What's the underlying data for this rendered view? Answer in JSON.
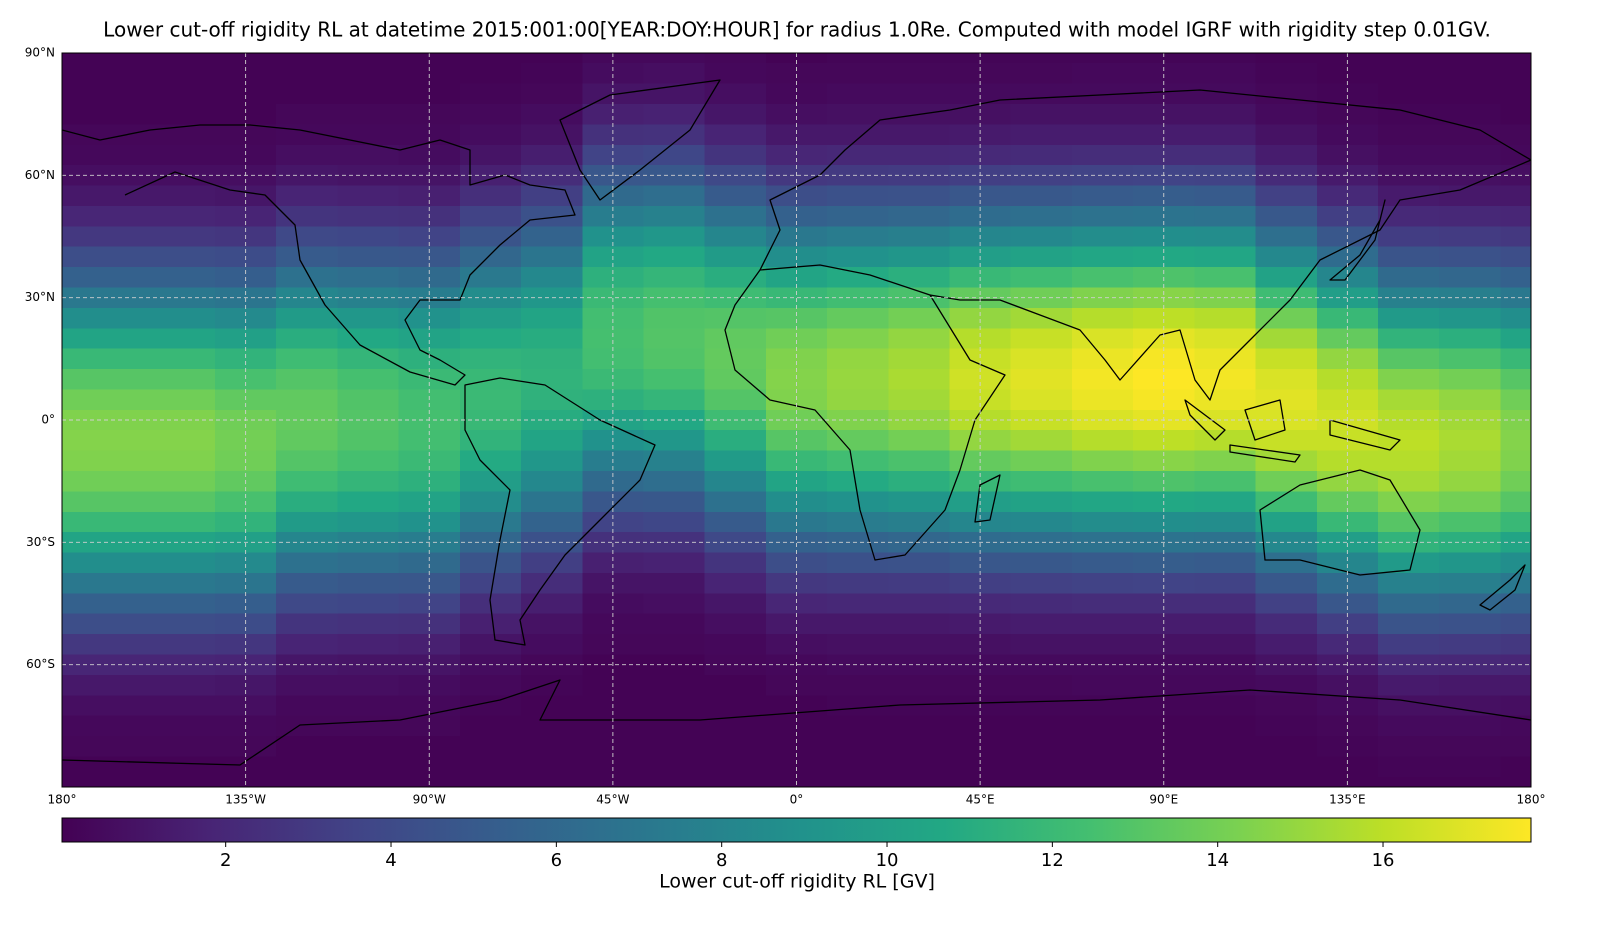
{
  "chart_data": {
    "type": "heatmap",
    "title": "Lower cut-off rigidity RL at datetime 2015:001:00[YEAR:DOY:HOUR] for radius 1.0Re. Computed with model IGRF with rigidity step 0.01GV.",
    "x": [
      -180,
      -165,
      -150,
      -135,
      -120,
      -105,
      -90,
      -75,
      -60,
      -45,
      -30,
      -15,
      0,
      15,
      30,
      45,
      60,
      75,
      90,
      105,
      120,
      135,
      150,
      165,
      180
    ],
    "y": [
      90,
      85,
      80,
      75,
      70,
      65,
      60,
      55,
      50,
      45,
      40,
      35,
      30,
      25,
      20,
      15,
      10,
      5,
      0,
      -5,
      -10,
      -15,
      -20,
      -25,
      -30,
      -35,
      -40,
      -45,
      -50,
      -55,
      -60,
      -65,
      -70,
      -75,
      -80,
      -85,
      -90
    ],
    "values": [
      [
        0.1,
        0.1,
        0.1,
        0.1,
        0.3,
        0.4,
        0.7,
        1.2,
        1.9,
        2.9,
        4.2,
        5.5,
        7.1,
        8.7,
        10.4,
        11.9,
        13.1,
        13.9,
        14.4,
        14.5,
        14.4,
        13.9,
        13.1,
        11.9,
        10.4,
        8.7,
        7.1,
        5.5,
        4.2,
        2.9,
        1.9,
        1.2,
        0.7,
        0.4,
        0.3,
        0.1,
        0.1
      ],
      [
        0.1,
        0.1,
        0.1,
        0.1,
        0.3,
        0.4,
        0.7,
        1.2,
        1.9,
        2.9,
        4.2,
        5.5,
        7.1,
        8.7,
        10.4,
        11.9,
        13.1,
        13.9,
        14.4,
        14.5,
        14.4,
        13.9,
        13.1,
        11.9,
        10.4,
        8.7,
        7.1,
        5.5,
        4.2,
        2.9,
        1.9,
        1.2,
        0.7,
        0.4,
        0.3,
        0.1,
        0.1
      ],
      [
        0.1,
        0.1,
        0.1,
        0.1,
        0.3,
        0.4,
        0.7,
        1.2,
        1.9,
        2.9,
        4.2,
        5.5,
        7.1,
        8.7,
        10.4,
        11.9,
        13.1,
        13.9,
        14.4,
        14.5,
        14.4,
        13.9,
        13.1,
        11.9,
        10.4,
        8.7,
        7.1,
        5.5,
        4.2,
        2.9,
        1.9,
        1.2,
        0.7,
        0.4,
        0.3,
        0.1,
        0.1
      ],
      [
        0.1,
        0.1,
        0.1,
        0.1,
        0.3,
        0.4,
        0.7,
        1.1,
        1.8,
        2.8,
        4.1,
        5.3,
        6.9,
        8.4,
        10.1,
        11.5,
        12.6,
        13.4,
        13.9,
        14,
        13.9,
        13.4,
        12.6,
        11.5,
        10.1,
        8.4,
        6.9,
        5.3,
        4.1,
        2.8,
        1.8,
        1.1,
        0.7,
        0.4,
        0.3,
        0.1,
        0.1
      ],
      [
        0.1,
        0.1,
        0.1,
        0.3,
        0.4,
        0.7,
        1.1,
        1.8,
        2.7,
        3.9,
        5.1,
        6.6,
        8.1,
        9.7,
        11.1,
        12.2,
        13,
        13.4,
        13.5,
        13.4,
        13,
        12.2,
        11.1,
        9.7,
        8.1,
        6.6,
        5.1,
        3.9,
        2.7,
        1.8,
        1.1,
        0.7,
        0.4,
        0.3,
        0.1,
        0.1,
        0.1
      ],
      [
        0.1,
        0.1,
        0.1,
        0.3,
        0.4,
        0.7,
        1,
        1.7,
        2.6,
        3.8,
        4.9,
        6.4,
        7.8,
        9.4,
        10.7,
        11.7,
        12.5,
        12.9,
        13,
        12.9,
        12.5,
        11.7,
        10.7,
        9.4,
        7.8,
        6.4,
        4.9,
        3.8,
        2.6,
        1.7,
        1,
        0.7,
        0.4,
        0.3,
        0.1,
        0.1,
        0.1
      ],
      [
        0.1,
        0.1,
        0.1,
        0.3,
        0.4,
        0.6,
        1,
        1.6,
        2.5,
        3.6,
        4.8,
        6.1,
        7.5,
        9,
        10.3,
        11.3,
        12,
        12.4,
        12.5,
        12.4,
        12,
        11.3,
        10.3,
        9,
        7.5,
        6.1,
        4.8,
        3.6,
        2.5,
        1.6,
        1,
        0.6,
        0.4,
        0.3,
        0.1,
        0.1,
        0.1
      ],
      [
        0.1,
        0.1,
        0.2,
        0.4,
        0.6,
        1,
        1.6,
        2.4,
        3.5,
        4.6,
        5.9,
        7.2,
        8.6,
        9.8,
        10.8,
        11.5,
        11.9,
        12,
        11.9,
        11.5,
        10.8,
        9.8,
        8.6,
        7.2,
        5.9,
        4.6,
        3.5,
        2.4,
        1.6,
        1,
        0.6,
        0.4,
        0.2,
        0.1,
        0.1,
        0.1,
        0.1
      ],
      [
        0.1,
        0.2,
        0.3,
        0.6,
        0.9,
        1.5,
        2.3,
        3.3,
        4.4,
        5.6,
        6.9,
        8.3,
        9.4,
        10.4,
        11,
        11.4,
        11.5,
        11.4,
        11,
        10.4,
        9.4,
        8.3,
        6.9,
        5.6,
        4.4,
        3.3,
        2.3,
        1.5,
        0.9,
        0.6,
        0.3,
        0.2,
        0.1,
        0.1,
        0.1,
        0.1,
        0.1
      ],
      [
        0.4,
        0.6,
        1,
        1.6,
        2.5,
        3.6,
        4.8,
        6.1,
        7.5,
        9,
        10.3,
        11.3,
        12,
        12.4,
        12.5,
        12.4,
        12,
        11.3,
        10.3,
        9,
        7.5,
        6.1,
        4.8,
        3.6,
        2.5,
        1.6,
        1,
        0.6,
        0.4,
        0.3,
        0.1,
        0.1,
        0.1,
        0.1,
        0.1,
        0.1,
        0.1
      ],
      [
        0.4,
        0.7,
        1,
        1.7,
        2.6,
        3.8,
        4.9,
        6.4,
        7.8,
        9.4,
        10.7,
        11.7,
        12.5,
        12.9,
        13,
        12.9,
        12.5,
        11.7,
        10.7,
        9.4,
        7.8,
        6.4,
        4.9,
        3.8,
        2.6,
        1.7,
        1,
        0.7,
        0.4,
        0.3,
        0.1,
        0.1,
        0.1,
        0.1,
        0.1,
        0.1,
        0.1
      ],
      [
        0.3,
        0.4,
        0.7,
        1.1,
        1.8,
        2.7,
        3.9,
        5.1,
        6.6,
        8.1,
        9.7,
        11.1,
        12.2,
        13,
        13.4,
        13.5,
        13.4,
        13,
        12.2,
        11.1,
        9.7,
        8.1,
        6.6,
        5.1,
        3.9,
        2.7,
        1.8,
        1.1,
        0.7,
        0.4,
        0.3,
        0.1,
        0.1,
        0.1,
        0.1,
        0.1,
        0.1
      ],
      [
        0.1,
        0.3,
        0.4,
        0.7,
        1.2,
        1.9,
        2.9,
        4.2,
        5.5,
        7.1,
        8.7,
        10.4,
        11.9,
        13.1,
        13.9,
        14.4,
        14.5,
        14.4,
        13.9,
        13.1,
        11.9,
        10.4,
        8.7,
        7.1,
        5.5,
        4.2,
        2.9,
        1.9,
        1.2,
        0.7,
        0.4,
        0.3,
        0.1,
        0.1,
        0.1,
        0.1,
        0.1
      ],
      [
        0.2,
        0.3,
        0.5,
        0.8,
        1.2,
        2,
        3,
        4.4,
        5.7,
        7.4,
        9,
        10.8,
        12.3,
        13.5,
        14.4,
        14.9,
        15,
        14.9,
        14.4,
        13.5,
        12.3,
        10.8,
        9,
        7.4,
        5.7,
        4.4,
        3,
        2,
        1.2,
        0.8,
        0.5,
        0.3,
        0.2,
        0.1,
        0.1,
        0.1,
        0.1
      ],
      [
        0.2,
        0.3,
        0.5,
        0.8,
        1.2,
        2,
        3.1,
        4.5,
        5.9,
        7.6,
        9.3,
        11.2,
        12.7,
        14,
        14.9,
        15.3,
        15.5,
        15.3,
        14.9,
        14,
        12.7,
        11.2,
        9.3,
        7.6,
        5.9,
        4.5,
        3.1,
        2,
        1.2,
        0.8,
        0.5,
        0.3,
        0.2,
        0.1,
        0.1,
        0.1,
        0.1
      ],
      [
        0.2,
        0.3,
        0.5,
        0.8,
        1.3,
        2.1,
        3.3,
        4.8,
        6.3,
        8.1,
        9.9,
        11.9,
        13.5,
        14.9,
        15.8,
        16.3,
        16.5,
        16.3,
        15.8,
        14.9,
        13.5,
        11.9,
        9.9,
        8.1,
        6.3,
        4.8,
        3.3,
        2.1,
        1.3,
        0.8,
        0.5,
        0.3,
        0.2,
        0.1,
        0.1,
        0.1,
        0.1
      ],
      [
        0.2,
        0.3,
        0.5,
        0.9,
        1.4,
        2.2,
        3.4,
        4.9,
        6.5,
        8.3,
        10.2,
        12.2,
        13.9,
        15.3,
        16.3,
        16.8,
        17,
        16.8,
        16.3,
        15.3,
        13.9,
        12.2,
        10.2,
        8.3,
        6.5,
        4.9,
        3.4,
        2.2,
        1.4,
        0.9,
        0.5,
        0.3,
        0.2,
        0.1,
        0.1,
        0.1,
        0.1
      ],
      [
        0.2,
        0.4,
        0.5,
        0.9,
        1.4,
        2.3,
        3.5,
        5.1,
        6.7,
        8.6,
        10.5,
        12.6,
        14.4,
        15.8,
        16.8,
        17.3,
        17.5,
        17.3,
        16.8,
        15.8,
        14.4,
        12.6,
        10.5,
        8.6,
        6.7,
        5.1,
        3.5,
        2.3,
        1.4,
        0.9,
        0.5,
        0.4,
        0.2,
        0.1,
        0.1,
        0.1,
        0.1
      ],
      [
        0.2,
        0.4,
        0.5,
        0.9,
        1.4,
        2.3,
        3.6,
        5.2,
        6.8,
        8.7,
        10.7,
        12.8,
        14.6,
        16,
        17.1,
        17.6,
        17.8,
        17.6,
        17.1,
        16,
        14.6,
        12.8,
        10.7,
        8.7,
        6.8,
        5.2,
        3.6,
        2.3,
        1.4,
        0.9,
        0.5,
        0.4,
        0.2,
        0.1,
        0.1,
        0.1,
        0.1
      ],
      [
        0.2,
        0.4,
        0.5,
        0.9,
        1.4,
        2.3,
        3.5,
        5.1,
        6.7,
        8.6,
        10.5,
        12.6,
        14.4,
        15.8,
        16.8,
        17.3,
        17.5,
        17.3,
        16.8,
        15.8,
        14.4,
        12.6,
        10.5,
        8.6,
        6.7,
        5.1,
        3.5,
        2.3,
        1.4,
        0.9,
        0.5,
        0.4,
        0.2,
        0.1,
        0.1,
        0.1,
        0.1
      ],
      [
        0.1,
        0.2,
        0.3,
        0.5,
        0.9,
        1.4,
        2.2,
        3.4,
        4.9,
        6.5,
        8.3,
        10.2,
        12.2,
        13.9,
        15.3,
        16.3,
        16.8,
        17,
        16.8,
        16.3,
        15.3,
        13.9,
        12.2,
        10.2,
        8.3,
        6.5,
        4.9,
        3.4,
        2.2,
        1.4,
        0.9,
        0.5,
        0.3,
        0.2,
        0.1,
        0.1,
        0.1
      ],
      [
        0.1,
        0.1,
        0.2,
        0.3,
        0.5,
        0.8,
        1.3,
        2.1,
        3.3,
        4.8,
        6.3,
        8.1,
        9.9,
        11.9,
        13.5,
        14.9,
        15.8,
        16.3,
        16.5,
        16.3,
        15.8,
        14.9,
        13.5,
        11.9,
        9.9,
        8.1,
        6.3,
        4.8,
        3.3,
        2.1,
        1.3,
        0.8,
        0.5,
        0.3,
        0.2,
        0.1,
        0.1
      ],
      [
        0.1,
        0.1,
        0.1,
        0.2,
        0.3,
        0.5,
        0.8,
        1.3,
        2.1,
        3.2,
        4.6,
        6.1,
        7.8,
        9.6,
        11.5,
        13.1,
        14.4,
        15.4,
        15.8,
        16,
        15.8,
        15.4,
        14.4,
        13.1,
        11.5,
        9.6,
        7.8,
        6.1,
        4.6,
        3.2,
        2.1,
        1.3,
        0.8,
        0.5,
        0.3,
        0.2,
        0.1
      ],
      [
        0.1,
        0.1,
        0.1,
        0.2,
        0.3,
        0.5,
        0.8,
        1.2,
        2,
        3.1,
        4.5,
        5.9,
        7.6,
        9.3,
        11.2,
        12.7,
        14,
        14.9,
        15.3,
        15.5,
        15.3,
        14.9,
        14,
        12.7,
        11.2,
        9.3,
        7.6,
        5.9,
        4.5,
        3.1,
        2,
        1.2,
        0.8,
        0.5,
        0.3,
        0.2,
        0.1
      ],
      [
        0.1,
        0.1,
        0.1,
        0.1,
        0.3,
        0.4,
        0.7,
        1.2,
        1.9,
        2.9,
        4.2,
        5.5,
        7.1,
        8.7,
        10.4,
        11.9,
        13.1,
        13.9,
        14.4,
        14.5,
        14.4,
        13.9,
        13.1,
        11.9,
        10.4,
        8.7,
        7.1,
        5.5,
        4.2,
        2.9,
        1.9,
        1.2,
        0.7,
        0.4,
        0.3,
        0.1,
        0.1
      ]
    ],
    "xlim": [
      -180,
      180
    ],
    "ylim": [
      -90,
      90
    ],
    "xticks": [
      {
        "value": -180,
        "label": "180°"
      },
      {
        "value": -135,
        "label": "135°W"
      },
      {
        "value": -90,
        "label": "90°W"
      },
      {
        "value": -45,
        "label": "45°W"
      },
      {
        "value": 0,
        "label": "0°"
      },
      {
        "value": 45,
        "label": "45°E"
      },
      {
        "value": 90,
        "label": "90°E"
      },
      {
        "value": 135,
        "label": "135°E"
      },
      {
        "value": 180,
        "label": "180°"
      }
    ],
    "yticks": [
      {
        "value": 90,
        "label": "90°N"
      },
      {
        "value": 60,
        "label": "60°N"
      },
      {
        "value": 30,
        "label": "30°N"
      },
      {
        "value": 0,
        "label": "0°"
      },
      {
        "value": -30,
        "label": "30°S"
      },
      {
        "value": -60,
        "label": "60°S"
      }
    ],
    "grid": true,
    "colormap": "viridis",
    "clim": [
      0.02,
      17.79
    ],
    "colorbar": {
      "label": "Lower cut-off rigidity RL [GV]",
      "ticks": [
        2,
        4,
        6,
        8,
        10,
        12,
        14,
        16
      ]
    }
  }
}
